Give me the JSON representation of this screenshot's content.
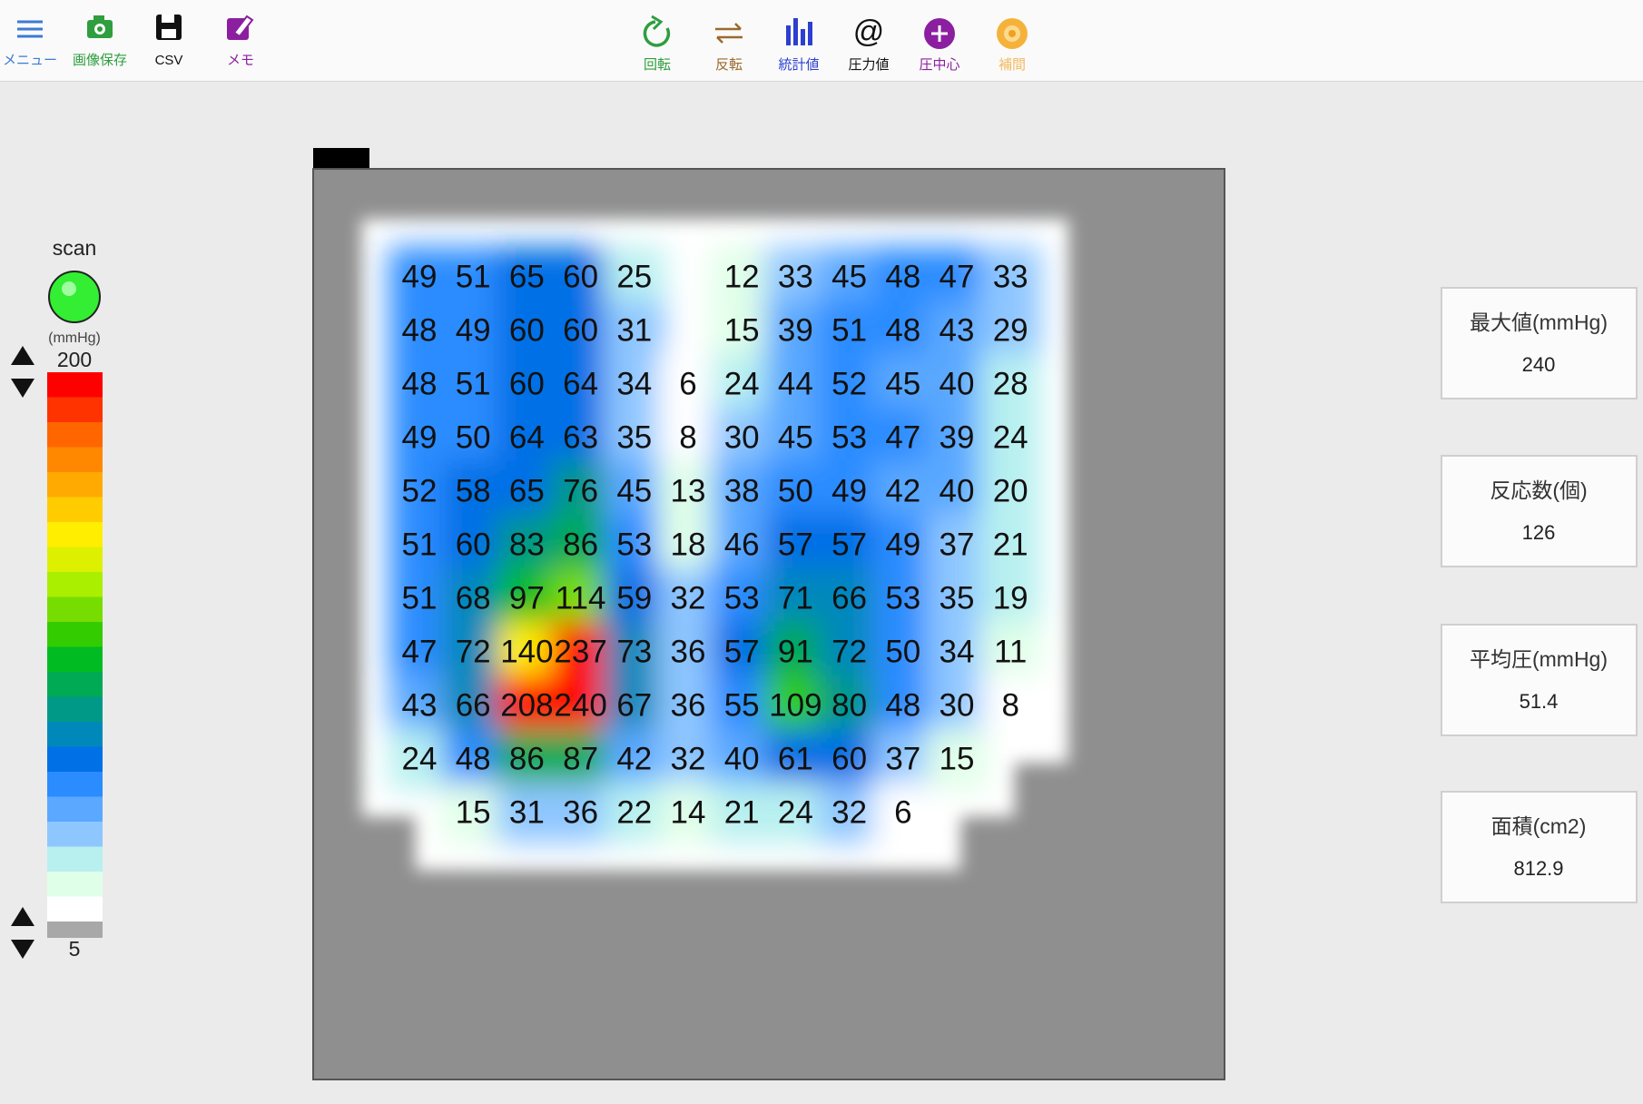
{
  "toolbar": {
    "left": [
      {
        "label": "メニュー",
        "color": "#3a7bd5"
      },
      {
        "label": "画像保存",
        "color": "#2e9e3e"
      },
      {
        "label": "CSV",
        "color": "#111111"
      },
      {
        "label": "メモ",
        "color": "#8b1fa0"
      }
    ],
    "center": [
      {
        "label": "回転",
        "color": "#2e9e3e"
      },
      {
        "label": "反転",
        "color": "#9a6a2a"
      },
      {
        "label": "統計値",
        "color": "#2c3fd0"
      },
      {
        "label": "圧力値",
        "color": "#111111",
        "symbol": "@"
      },
      {
        "label": "圧中心",
        "color": "#8b1fa0"
      },
      {
        "label": "補間",
        "color": "#f0a020"
      }
    ]
  },
  "legend": {
    "title": "scan",
    "unit": "(mmHg)",
    "max": 200,
    "min": 5,
    "colors": [
      "#ff0000",
      "#ff3300",
      "#ff6600",
      "#ff8800",
      "#ffaa00",
      "#ffcc00",
      "#ffee00",
      "#ddf000",
      "#aaee00",
      "#77dd00",
      "#33cc00",
      "#00bb22",
      "#00aa55",
      "#009988",
      "#0088bb",
      "#0070e6",
      "#2a8cff",
      "#5aa8ff",
      "#8ec6ff",
      "#b8f0f0",
      "#e0ffe8",
      "#ffffff"
    ]
  },
  "pressure_map": {
    "rows": [
      [
        49,
        51,
        65,
        60,
        25,
        null,
        12,
        33,
        45,
        48,
        47,
        33
      ],
      [
        48,
        49,
        60,
        60,
        31,
        null,
        15,
        39,
        51,
        48,
        43,
        29
      ],
      [
        48,
        51,
        60,
        64,
        34,
        6,
        24,
        44,
        52,
        45,
        40,
        28
      ],
      [
        49,
        50,
        64,
        63,
        35,
        8,
        30,
        45,
        53,
        47,
        39,
        24
      ],
      [
        52,
        58,
        65,
        76,
        45,
        13,
        38,
        50,
        49,
        42,
        40,
        20
      ],
      [
        51,
        60,
        83,
        86,
        53,
        18,
        46,
        57,
        57,
        49,
        37,
        21
      ],
      [
        51,
        68,
        97,
        114,
        59,
        32,
        53,
        71,
        66,
        53,
        35,
        19
      ],
      [
        47,
        72,
        140,
        237,
        73,
        36,
        57,
        91,
        72,
        50,
        34,
        11
      ],
      [
        43,
        66,
        208,
        240,
        67,
        36,
        55,
        109,
        80,
        48,
        30,
        8
      ],
      [
        24,
        48,
        86,
        87,
        42,
        32,
        40,
        61,
        60,
        37,
        15,
        null
      ],
      [
        null,
        15,
        31,
        36,
        22,
        14,
        21,
        24,
        32,
        6,
        null,
        null
      ]
    ]
  },
  "stats": [
    {
      "label": "最大値(mmHg)",
      "value": 240
    },
    {
      "label": "反応数(個)",
      "value": 126
    },
    {
      "label": "平均圧(mmHg)",
      "value": 51.4
    },
    {
      "label": "面積(cm2)",
      "value": 812.9
    }
  ]
}
